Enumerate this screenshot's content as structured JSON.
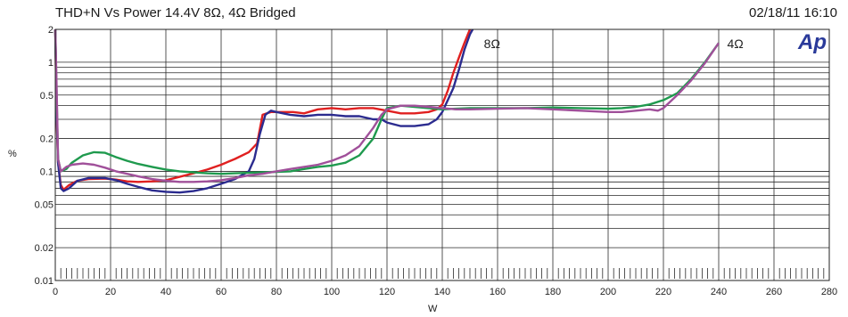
{
  "chart_data": {
    "type": "line",
    "title": "THD+N Vs Power 14.4V 8Ω, 4Ω Bridged",
    "date": "02/18/11 16:10",
    "xlabel": "W",
    "ylabel": "%",
    "logo": "Ap",
    "xlim": [
      0,
      280
    ],
    "ylim": [
      0.01,
      2
    ],
    "yscale": "log",
    "grid": true,
    "x_ticks": [
      "0",
      "20",
      "40",
      "60",
      "80",
      "100",
      "120",
      "140",
      "160",
      "180",
      "200",
      "220",
      "240",
      "260",
      "280"
    ],
    "y_ticks": [
      {
        "value": 2,
        "label": "2"
      },
      {
        "value": 1,
        "label": "1"
      },
      {
        "value": 0.5,
        "label": "0.5"
      },
      {
        "value": 0.2,
        "label": "0.2"
      },
      {
        "value": 0.1,
        "label": "0.1"
      },
      {
        "value": 0.05,
        "label": "0.05"
      },
      {
        "value": 0.02,
        "label": "0.02"
      },
      {
        "value": 0.01,
        "label": "0.01"
      }
    ],
    "annotations": [
      {
        "text": "8Ω",
        "x": 158,
        "y": 1.48
      },
      {
        "text": "4Ω",
        "x": 246,
        "y": 1.48
      }
    ],
    "series": [
      {
        "color": "#e02020",
        "points": [
          [
            0,
            2
          ],
          [
            0.5,
            0.3
          ],
          [
            1,
            0.12
          ],
          [
            2,
            0.075
          ],
          [
            3,
            0.068
          ],
          [
            5,
            0.075
          ],
          [
            8,
            0.082
          ],
          [
            12,
            0.085
          ],
          [
            18,
            0.086
          ],
          [
            22,
            0.084
          ],
          [
            26,
            0.081
          ],
          [
            30,
            0.08
          ],
          [
            35,
            0.081
          ],
          [
            40,
            0.083
          ],
          [
            45,
            0.089
          ],
          [
            50,
            0.096
          ],
          [
            55,
            0.104
          ],
          [
            60,
            0.115
          ],
          [
            65,
            0.13
          ],
          [
            70,
            0.15
          ],
          [
            73,
            0.18
          ],
          [
            75,
            0.33
          ],
          [
            78,
            0.35
          ],
          [
            82,
            0.35
          ],
          [
            86,
            0.35
          ],
          [
            90,
            0.34
          ],
          [
            95,
            0.37
          ],
          [
            100,
            0.38
          ],
          [
            105,
            0.37
          ],
          [
            110,
            0.38
          ],
          [
            115,
            0.38
          ],
          [
            120,
            0.36
          ],
          [
            125,
            0.34
          ],
          [
            130,
            0.34
          ],
          [
            135,
            0.35
          ],
          [
            138,
            0.37
          ],
          [
            140,
            0.41
          ],
          [
            142,
            0.55
          ],
          [
            144,
            0.8
          ],
          [
            146,
            1.1
          ],
          [
            148,
            1.5
          ],
          [
            150,
            2
          ]
        ]
      },
      {
        "color": "#2b2b8f",
        "points": [
          [
            0,
            2
          ],
          [
            0.5,
            0.35
          ],
          [
            1,
            0.12
          ],
          [
            2,
            0.07
          ],
          [
            3,
            0.066
          ],
          [
            5,
            0.07
          ],
          [
            8,
            0.082
          ],
          [
            12,
            0.087
          ],
          [
            18,
            0.087
          ],
          [
            22,
            0.083
          ],
          [
            26,
            0.077
          ],
          [
            30,
            0.072
          ],
          [
            35,
            0.067
          ],
          [
            40,
            0.065
          ],
          [
            45,
            0.064
          ],
          [
            50,
            0.066
          ],
          [
            55,
            0.07
          ],
          [
            60,
            0.077
          ],
          [
            65,
            0.085
          ],
          [
            70,
            0.1
          ],
          [
            72,
            0.13
          ],
          [
            74,
            0.22
          ],
          [
            76,
            0.33
          ],
          [
            78,
            0.36
          ],
          [
            80,
            0.35
          ],
          [
            85,
            0.33
          ],
          [
            90,
            0.32
          ],
          [
            95,
            0.33
          ],
          [
            100,
            0.33
          ],
          [
            105,
            0.32
          ],
          [
            110,
            0.32
          ],
          [
            115,
            0.3
          ],
          [
            118,
            0.3
          ],
          [
            120,
            0.28
          ],
          [
            125,
            0.26
          ],
          [
            130,
            0.26
          ],
          [
            135,
            0.27
          ],
          [
            138,
            0.3
          ],
          [
            140,
            0.35
          ],
          [
            142,
            0.45
          ],
          [
            144,
            0.58
          ],
          [
            146,
            0.85
          ],
          [
            148,
            1.3
          ],
          [
            150,
            1.8
          ],
          [
            151,
            2
          ]
        ]
      },
      {
        "color": "#1f9a4e",
        "points": [
          [
            0,
            2
          ],
          [
            0.5,
            0.5
          ],
          [
            1,
            0.13
          ],
          [
            2,
            0.1
          ],
          [
            4,
            0.105
          ],
          [
            6,
            0.12
          ],
          [
            10,
            0.14
          ],
          [
            14,
            0.15
          ],
          [
            18,
            0.148
          ],
          [
            22,
            0.135
          ],
          [
            26,
            0.125
          ],
          [
            30,
            0.117
          ],
          [
            35,
            0.11
          ],
          [
            40,
            0.104
          ],
          [
            45,
            0.1
          ],
          [
            50,
            0.098
          ],
          [
            55,
            0.096
          ],
          [
            60,
            0.095
          ],
          [
            65,
            0.096
          ],
          [
            70,
            0.097
          ],
          [
            75,
            0.098
          ],
          [
            80,
            0.099
          ],
          [
            85,
            0.1
          ],
          [
            90,
            0.105
          ],
          [
            95,
            0.11
          ],
          [
            100,
            0.113
          ],
          [
            105,
            0.12
          ],
          [
            110,
            0.14
          ],
          [
            115,
            0.2
          ],
          [
            118,
            0.3
          ],
          [
            120,
            0.38
          ],
          [
            125,
            0.4
          ],
          [
            130,
            0.39
          ],
          [
            135,
            0.38
          ],
          [
            140,
            0.37
          ],
          [
            145,
            0.375
          ],
          [
            150,
            0.38
          ],
          [
            160,
            0.38
          ],
          [
            170,
            0.38
          ],
          [
            180,
            0.385
          ],
          [
            190,
            0.38
          ],
          [
            200,
            0.375
          ],
          [
            205,
            0.38
          ],
          [
            210,
            0.39
          ],
          [
            215,
            0.41
          ],
          [
            220,
            0.45
          ],
          [
            225,
            0.52
          ],
          [
            230,
            0.7
          ],
          [
            235,
            1.0
          ],
          [
            240,
            1.5
          ]
        ]
      },
      {
        "color": "#a0509a",
        "points": [
          [
            0,
            2
          ],
          [
            0.5,
            0.6
          ],
          [
            1,
            0.13
          ],
          [
            2,
            0.1
          ],
          [
            4,
            0.11
          ],
          [
            6,
            0.115
          ],
          [
            10,
            0.118
          ],
          [
            14,
            0.115
          ],
          [
            18,
            0.108
          ],
          [
            22,
            0.1
          ],
          [
            26,
            0.095
          ],
          [
            30,
            0.09
          ],
          [
            35,
            0.085
          ],
          [
            40,
            0.082
          ],
          [
            45,
            0.08
          ],
          [
            50,
            0.08
          ],
          [
            55,
            0.081
          ],
          [
            60,
            0.083
          ],
          [
            65,
            0.087
          ],
          [
            70,
            0.092
          ],
          [
            75,
            0.095
          ],
          [
            80,
            0.1
          ],
          [
            85,
            0.105
          ],
          [
            90,
            0.11
          ],
          [
            95,
            0.115
          ],
          [
            100,
            0.125
          ],
          [
            105,
            0.14
          ],
          [
            110,
            0.17
          ],
          [
            115,
            0.25
          ],
          [
            118,
            0.33
          ],
          [
            120,
            0.37
          ],
          [
            125,
            0.4
          ],
          [
            130,
            0.4
          ],
          [
            135,
            0.39
          ],
          [
            140,
            0.38
          ],
          [
            145,
            0.37
          ],
          [
            150,
            0.37
          ],
          [
            160,
            0.375
          ],
          [
            170,
            0.38
          ],
          [
            180,
            0.37
          ],
          [
            190,
            0.36
          ],
          [
            200,
            0.35
          ],
          [
            205,
            0.35
          ],
          [
            210,
            0.36
          ],
          [
            215,
            0.37
          ],
          [
            218,
            0.36
          ],
          [
            220,
            0.38
          ],
          [
            225,
            0.5
          ],
          [
            230,
            0.68
          ],
          [
            235,
            0.98
          ],
          [
            240,
            1.5
          ]
        ]
      }
    ]
  }
}
